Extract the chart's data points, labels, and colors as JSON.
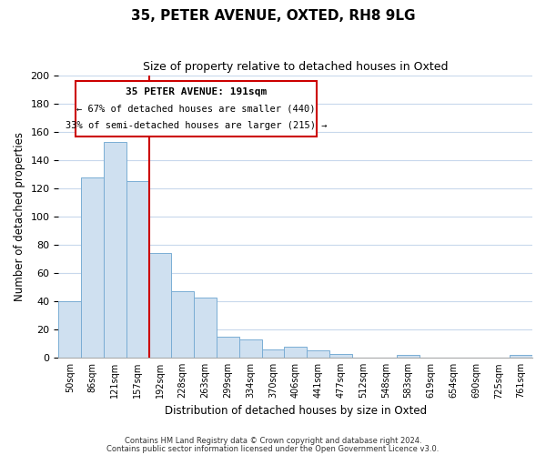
{
  "title1": "35, PETER AVENUE, OXTED, RH8 9LG",
  "title2": "Size of property relative to detached houses in Oxted",
  "xlabel": "Distribution of detached houses by size in Oxted",
  "ylabel": "Number of detached properties",
  "bar_labels": [
    "50sqm",
    "86sqm",
    "121sqm",
    "157sqm",
    "192sqm",
    "228sqm",
    "263sqm",
    "299sqm",
    "334sqm",
    "370sqm",
    "406sqm",
    "441sqm",
    "477sqm",
    "512sqm",
    "548sqm",
    "583sqm",
    "619sqm",
    "654sqm",
    "690sqm",
    "725sqm",
    "761sqm"
  ],
  "bar_values": [
    40,
    128,
    153,
    125,
    74,
    47,
    43,
    15,
    13,
    6,
    8,
    5,
    3,
    0,
    0,
    2,
    0,
    0,
    0,
    0,
    2
  ],
  "bar_color": "#cfe0f0",
  "bar_edge_color": "#7aadd4",
  "vline_color": "#cc0000",
  "annotation_title": "35 PETER AVENUE: 191sqm",
  "annotation_line1": "← 67% of detached houses are smaller (440)",
  "annotation_line2": "33% of semi-detached houses are larger (215) →",
  "annotation_box_color": "#ffffff",
  "annotation_box_edge": "#cc0000",
  "ylim": [
    0,
    200
  ],
  "yticks": [
    0,
    20,
    40,
    60,
    80,
    100,
    120,
    140,
    160,
    180,
    200
  ],
  "footer1": "Contains HM Land Registry data © Crown copyright and database right 2024.",
  "footer2": "Contains public sector information licensed under the Open Government Licence v3.0.",
  "bg_color": "#ffffff",
  "grid_color": "#c8d8ec"
}
